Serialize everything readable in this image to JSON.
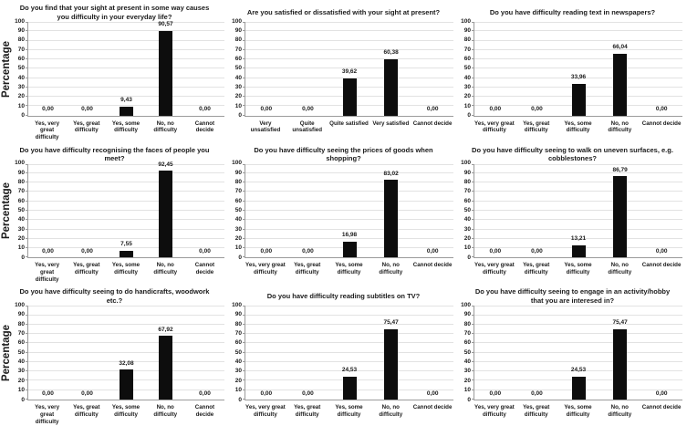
{
  "figure": {
    "ylabel": "Percentage",
    "yticks": [
      "0",
      "10",
      "20",
      "30",
      "40",
      "50",
      "60",
      "70",
      "80",
      "90",
      "100"
    ],
    "ylim": [
      0,
      100
    ],
    "bar_color": "#0d0d0d",
    "gridline_color": "#e2e2e2",
    "axis_color": "#9b9b9b",
    "background": "#ffffff",
    "grid_rows": 3,
    "grid_cols": 3
  },
  "chart_data": [
    {
      "type": "bar",
      "title": "Do you find that your sight at present in some way causes\nyou difficulty in your everyday life?",
      "ylabel": "Percentage",
      "xlabel": "",
      "ylim": [
        0,
        100
      ],
      "grid": true,
      "legend": false,
      "categories": [
        "Yes, very great\ndifficulty",
        "Yes, great\ndifficulty",
        "Yes, some\ndifficulty",
        "No, no difficulty",
        "Cannot decide"
      ],
      "values": [
        0,
        0,
        9.43,
        90.57,
        0
      ],
      "value_labels": [
        "0,00",
        "0,00",
        "9,43",
        "90,57",
        "0,00"
      ]
    },
    {
      "type": "bar",
      "title": "Are you satisfied or dissatisfied with your sight at present?",
      "ylabel": "",
      "xlabel": "",
      "ylim": [
        0,
        100
      ],
      "grid": true,
      "legend": false,
      "categories": [
        "Very unsatisfied",
        "Quite unsatisfied",
        "Quite satisfied",
        "Very satisfied",
        "Cannot decide"
      ],
      "values": [
        0,
        0,
        39.62,
        60.38,
        0
      ],
      "value_labels": [
        "0,00",
        "0,00",
        "39,62",
        "60,38",
        "0,00"
      ]
    },
    {
      "type": "bar",
      "title": "Do you have difficulty reading text in newspapers?",
      "ylabel": "",
      "xlabel": "",
      "ylim": [
        0,
        100
      ],
      "grid": true,
      "legend": false,
      "categories": [
        "Yes, very great\ndifficulty",
        "Yes, great\ndifficulty",
        "Yes, some\ndifficulty",
        "No, no difficulty",
        "Cannot decide"
      ],
      "values": [
        0,
        0,
        33.96,
        66.04,
        0
      ],
      "value_labels": [
        "0,00",
        "0,00",
        "33,96",
        "66,04",
        "0,00"
      ]
    },
    {
      "type": "bar",
      "title": "Do you have difficulty recognising the faces of people you\nmeet?",
      "ylabel": "Percentage",
      "xlabel": "",
      "ylim": [
        0,
        100
      ],
      "grid": true,
      "legend": false,
      "categories": [
        "Yes, very great\ndifficulty",
        "Yes, great\ndifficulty",
        "Yes, some\ndifficulty",
        "No, no difficulty",
        "Cannot decide"
      ],
      "values": [
        0,
        0,
        7.55,
        92.45,
        0
      ],
      "value_labels": [
        "0,00",
        "0,00",
        "7,55",
        "92,45",
        "0,00"
      ]
    },
    {
      "type": "bar",
      "title": "Do you have difficulty seeing the prices of goods when\nshopping?",
      "ylabel": "",
      "xlabel": "",
      "ylim": [
        0,
        100
      ],
      "grid": true,
      "legend": false,
      "categories": [
        "Yes, very great\ndifficulty",
        "Yes, great\ndifficulty",
        "Yes, some\ndifficulty",
        "No, no difficulty",
        "Cannot decide"
      ],
      "values": [
        0,
        0,
        16.98,
        83.02,
        0
      ],
      "value_labels": [
        "0,00",
        "0,00",
        "16,98",
        "83,02",
        "0,00"
      ]
    },
    {
      "type": "bar",
      "title": "Do you have difficulty seeing to walk on uneven surfaces, e.g.\ncobblestones?",
      "ylabel": "",
      "xlabel": "",
      "ylim": [
        0,
        100
      ],
      "grid": true,
      "legend": false,
      "categories": [
        "Yes, very great\ndifficulty",
        "Yes, great\ndifficulty",
        "Yes, some\ndifficulty",
        "No, no difficulty",
        "Cannot decide"
      ],
      "values": [
        0,
        0,
        13.21,
        86.79,
        0
      ],
      "value_labels": [
        "0,00",
        "0,00",
        "13,21",
        "86,79",
        "0,00"
      ]
    },
    {
      "type": "bar",
      "title": "Do you have difficulty seeing to do handicrafts, woodwork\netc.?",
      "ylabel": "Percentage",
      "xlabel": "",
      "ylim": [
        0,
        100
      ],
      "grid": true,
      "legend": false,
      "categories": [
        "Yes, very great\ndifficulty",
        "Yes, great\ndifficulty",
        "Yes, some\ndifficulty",
        "No, no difficulty",
        "Cannot decide"
      ],
      "values": [
        0,
        0,
        32.08,
        67.92,
        0
      ],
      "value_labels": [
        "0,00",
        "0,00",
        "32,08",
        "67,92",
        "0,00"
      ]
    },
    {
      "type": "bar",
      "title": "Do you have difficulty reading subtitles on TV?",
      "ylabel": "",
      "xlabel": "",
      "ylim": [
        0,
        100
      ],
      "grid": true,
      "legend": false,
      "categories": [
        "Yes, very great\ndifficulty",
        "Yes, great\ndifficulty",
        "Yes, some\ndifficulty",
        "No, no difficulty",
        "Cannot decide"
      ],
      "values": [
        0,
        0,
        24.53,
        75.47,
        0
      ],
      "value_labels": [
        "0,00",
        "0,00",
        "24,53",
        "75,47",
        "0,00"
      ]
    },
    {
      "type": "bar",
      "title": "Do you have difficulty seeing to engage in an activity/hobby\nthat you are interesed in?",
      "ylabel": "",
      "xlabel": "",
      "ylim": [
        0,
        100
      ],
      "grid": true,
      "legend": false,
      "categories": [
        "Yes, very great\ndifficulty",
        "Yes, great\ndifficulty",
        "Yes, some\ndifficulty",
        "No, no difficulty",
        "Cannot decide"
      ],
      "values": [
        0,
        0,
        24.53,
        75.47,
        0
      ],
      "value_labels": [
        "0,00",
        "0,00",
        "24,53",
        "75,47",
        "0,00"
      ]
    }
  ]
}
